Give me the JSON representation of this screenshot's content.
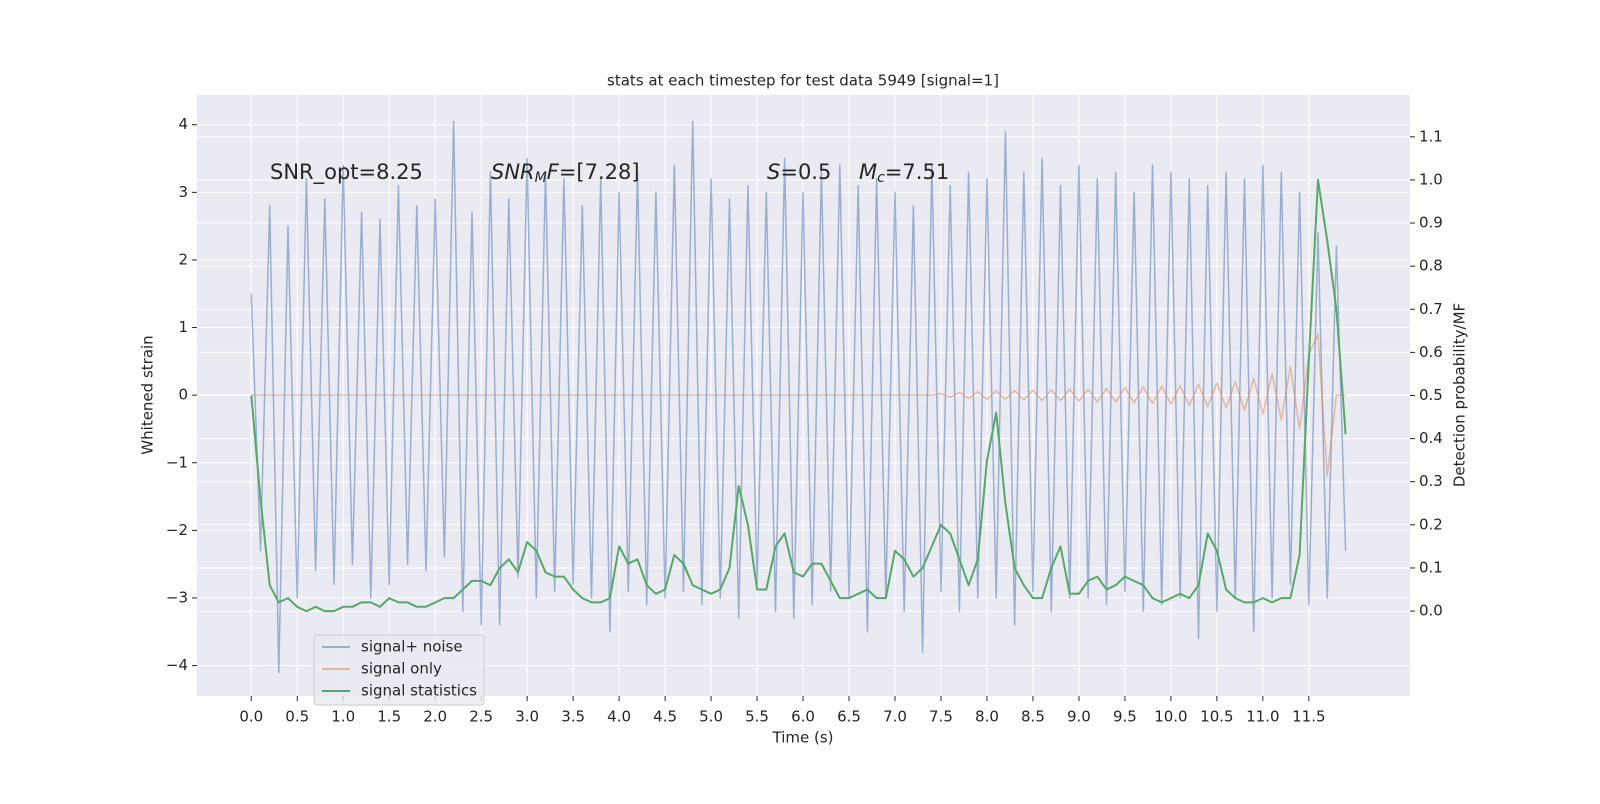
{
  "chart_data": {
    "type": "line",
    "title": "stats at each timestep for test data 5949 [signal=1]",
    "xlabel": "Time (s)",
    "ylabel": "Whitened strain",
    "y2label": "Detection probability/MF",
    "annotations": [
      [
        "SNR_opt=8.25"
      ],
      [
        "SNR",
        "M",
        "F",
        "=[7.28]"
      ],
      [
        "S",
        "=0.5"
      ],
      [
        "M",
        "c",
        "=7.51"
      ]
    ],
    "xlim": [
      -0.59,
      12.6
    ],
    "ylim": [
      -4.45,
      4.44
    ],
    "y2lim": [
      -0.197,
      1.197
    ],
    "xticks": [
      {
        "value": 0,
        "label": "0.0"
      },
      0.5,
      {
        "value": 1,
        "label": "1.0"
      },
      1.5,
      {
        "value": 2,
        "label": "2.0"
      },
      2.5,
      {
        "value": 3,
        "label": "3.0"
      },
      3.5,
      {
        "value": 4,
        "label": "4.0"
      },
      4.5,
      {
        "value": 5,
        "label": "5.0"
      },
      5.5,
      {
        "value": 6,
        "label": "6.0"
      },
      6.5,
      {
        "value": 7,
        "label": "7.0"
      },
      7.5,
      {
        "value": 8,
        "label": "8.0"
      },
      8.5,
      {
        "value": 9,
        "label": "9.0"
      },
      9.5,
      {
        "value": 10,
        "label": "10.0"
      },
      10.5,
      {
        "value": 11,
        "label": "11.0"
      },
      11.5
    ],
    "yticks": [
      {
        "value": -4,
        "label": "−4"
      },
      {
        "value": -3,
        "label": "−3"
      },
      {
        "value": -2,
        "label": "−2"
      },
      {
        "value": -1,
        "label": "−1"
      },
      0,
      1,
      2,
      3,
      4
    ],
    "y2ticks": [
      {
        "value": 0,
        "label": "0.0"
      },
      0.1,
      0.2,
      0.3,
      0.4,
      0.5,
      0.6,
      0.7,
      0.8,
      0.9,
      {
        "value": 1,
        "label": "1.0"
      },
      1.1
    ],
    "grid": true,
    "legend": "lower left",
    "x": [
      0.0,
      0.1,
      0.2,
      0.3,
      0.4,
      0.5,
      0.6,
      0.7,
      0.8,
      0.9,
      1.0,
      1.1,
      1.2,
      1.3,
      1.4,
      1.5,
      1.6,
      1.7,
      1.8,
      1.9,
      2.0,
      2.1,
      2.2,
      2.3,
      2.4,
      2.5,
      2.6,
      2.7,
      2.8,
      2.9,
      3.0,
      3.1,
      3.2,
      3.3,
      3.4,
      3.5,
      3.6,
      3.7,
      3.8,
      3.9,
      4.0,
      4.1,
      4.2,
      4.3,
      4.4,
      4.5,
      4.6,
      4.7,
      4.8,
      4.9,
      5.0,
      5.1,
      5.2,
      5.3,
      5.4,
      5.5,
      5.6,
      5.7,
      5.8,
      5.9,
      6.0,
      6.1,
      6.2,
      6.3,
      6.4,
      6.5,
      6.6,
      6.7,
      6.8,
      6.9,
      7.0,
      7.1,
      7.2,
      7.3,
      7.4,
      7.5,
      7.6,
      7.7,
      7.8,
      7.9,
      8.0,
      8.1,
      8.2,
      8.3,
      8.4,
      8.5,
      8.6,
      8.7,
      8.8,
      8.9,
      9.0,
      9.1,
      9.2,
      9.3,
      9.4,
      9.5,
      9.6,
      9.7,
      9.8,
      9.9,
      10.0,
      10.1,
      10.2,
      10.3,
      10.4,
      10.5,
      10.6,
      10.7,
      10.8,
      10.9,
      11.0,
      11.1,
      11.2,
      11.3,
      11.4,
      11.5,
      11.6,
      11.7,
      11.8,
      11.9
    ],
    "series": [
      {
        "name": "signal+ noise",
        "color": "#4c72b0",
        "opacity": 0.5,
        "values": [
          1.5,
          -2.3,
          2.8,
          -4.1,
          2.5,
          -3.0,
          3.2,
          -2.6,
          2.9,
          -2.8,
          3.4,
          -2.5,
          2.7,
          -3.0,
          2.6,
          -2.8,
          3.1,
          -2.5,
          2.8,
          -2.6,
          2.9,
          -2.4,
          4.05,
          -3.2,
          2.7,
          -3.4,
          3.3,
          -3.4,
          2.9,
          -2.7,
          3.5,
          -3.0,
          3.3,
          -2.9,
          3.2,
          -2.8,
          2.8,
          -3.0,
          3.2,
          -3.5,
          3.0,
          -2.9,
          3.3,
          -3.1,
          3.0,
          -3.0,
          3.4,
          -2.9,
          4.05,
          -3.1,
          3.2,
          -3.0,
          2.9,
          -3.3,
          3.1,
          -2.8,
          3.0,
          -3.2,
          3.5,
          -3.3,
          3.0,
          -3.1,
          3.3,
          -2.9,
          3.4,
          -3.0,
          3.1,
          -3.5,
          3.2,
          -3.0,
          3.0,
          -3.2,
          2.8,
          -3.8,
          3.4,
          -2.9,
          3.1,
          -3.2,
          3.3,
          -3.0,
          3.2,
          -3.0,
          3.9,
          -3.4,
          3.3,
          -2.9,
          3.5,
          -3.2,
          3.1,
          -3.0,
          3.4,
          -3.0,
          3.2,
          -3.1,
          3.3,
          -2.9,
          3.0,
          -3.2,
          3.4,
          -3.1,
          3.3,
          -3.0,
          3.2,
          -3.6,
          3.1,
          -3.2,
          3.3,
          -3.0,
          3.2,
          -3.5,
          3.4,
          -3.0,
          3.3,
          -2.8,
          3.0,
          -3.1,
          2.4,
          -3.0,
          2.2,
          -2.3
        ]
      },
      {
        "name": "signal only",
        "color": "#dd8452",
        "opacity": 0.5,
        "values": [
          0,
          0,
          0,
          0,
          0,
          0,
          0,
          0,
          0,
          0,
          0,
          0,
          0,
          0,
          0,
          0,
          0,
          0,
          0,
          0,
          0,
          0,
          0,
          0,
          0,
          0,
          0,
          0,
          0,
          0,
          0,
          0,
          0,
          0,
          0,
          0,
          0,
          0,
          0,
          0,
          0,
          0,
          0,
          0,
          0,
          0,
          0,
          0,
          0,
          0,
          0,
          0,
          0,
          0,
          0,
          0,
          0,
          0,
          0,
          0,
          0,
          0,
          0,
          0,
          0,
          0,
          0,
          0,
          0,
          0,
          0,
          0,
          0,
          0,
          0,
          0.02,
          -0.03,
          0.04,
          -0.05,
          0.05,
          -0.06,
          0.06,
          -0.06,
          0.07,
          -0.07,
          0.07,
          -0.08,
          0.08,
          -0.08,
          0.09,
          -0.09,
          0.09,
          -0.1,
          0.1,
          -0.1,
          0.11,
          -0.11,
          0.12,
          -0.12,
          0.13,
          -0.13,
          0.14,
          -0.15,
          0.16,
          -0.17,
          0.18,
          -0.19,
          0.2,
          -0.22,
          0.25,
          -0.28,
          0.32,
          -0.36,
          0.42,
          -0.5,
          0.6,
          0.9,
          -1.2,
          0,
          0
        ]
      },
      {
        "name": "signal statistics",
        "color": "#55a868",
        "opacity": 1,
        "axis": "y2",
        "values": [
          0.5,
          0.26,
          0.06,
          0.02,
          0.03,
          0.01,
          0.0,
          0.01,
          0.0,
          0.0,
          0.01,
          0.01,
          0.02,
          0.02,
          0.01,
          0.03,
          0.02,
          0.02,
          0.01,
          0.01,
          0.02,
          0.03,
          0.03,
          0.05,
          0.07,
          0.07,
          0.06,
          0.1,
          0.12,
          0.09,
          0.16,
          0.14,
          0.09,
          0.08,
          0.08,
          0.05,
          0.03,
          0.02,
          0.02,
          0.03,
          0.15,
          0.11,
          0.12,
          0.06,
          0.04,
          0.05,
          0.13,
          0.11,
          0.06,
          0.05,
          0.04,
          0.05,
          0.1,
          0.29,
          0.2,
          0.05,
          0.05,
          0.15,
          0.18,
          0.09,
          0.08,
          0.11,
          0.11,
          0.07,
          0.03,
          0.03,
          0.04,
          0.05,
          0.03,
          0.03,
          0.14,
          0.12,
          0.08,
          0.1,
          0.15,
          0.2,
          0.18,
          0.12,
          0.06,
          0.12,
          0.35,
          0.46,
          0.25,
          0.1,
          0.06,
          0.03,
          0.03,
          0.1,
          0.15,
          0.04,
          0.04,
          0.07,
          0.08,
          0.05,
          0.06,
          0.08,
          0.07,
          0.06,
          0.03,
          0.02,
          0.03,
          0.04,
          0.03,
          0.06,
          0.18,
          0.14,
          0.05,
          0.03,
          0.02,
          0.02,
          0.03,
          0.02,
          0.03,
          0.03,
          0.13,
          0.58,
          1.0,
          0.86,
          0.7,
          0.41
        ]
      }
    ]
  }
}
